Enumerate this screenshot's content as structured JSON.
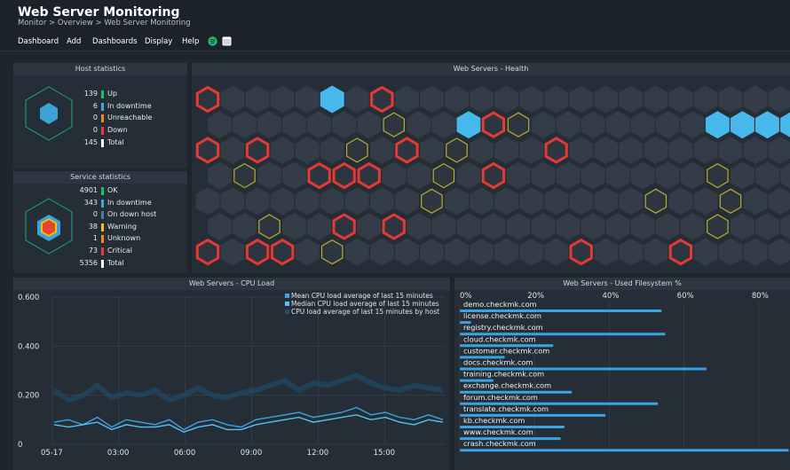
{
  "header": {
    "title": "Web Server Monitoring",
    "breadcrumb": "Monitor > Overview > Web Server Monitoring"
  },
  "menu": [
    "Dashboard",
    "Add",
    "Dashboards",
    "Display",
    "Help"
  ],
  "host_stats": {
    "title": "Host statistics",
    "rows": [
      {
        "value": "139",
        "label": "Up",
        "color": "#1fbc6c"
      },
      {
        "value": "6",
        "label": "In downtime",
        "color": "#3ba9df"
      },
      {
        "value": "0",
        "label": "Unreachable",
        "color": "#f08a1c"
      },
      {
        "value": "0",
        "label": "Down",
        "color": "#e53935"
      },
      {
        "value": "145",
        "label": "Total",
        "color": "#ffffff"
      }
    ]
  },
  "service_stats": {
    "title": "Service statistics",
    "rows": [
      {
        "value": "4901",
        "label": "OK",
        "color": "#1fbc6c"
      },
      {
        "value": "343",
        "label": "In downtime",
        "color": "#3ba9df"
      },
      {
        "value": "0",
        "label": "On down host",
        "color": "#4a7ea6"
      },
      {
        "value": "38",
        "label": "Warning",
        "color": "#f4c20d"
      },
      {
        "value": "1",
        "label": "Unknown",
        "color": "#f08a1c"
      },
      {
        "value": "73",
        "label": "Critical",
        "color": "#e53935"
      },
      {
        "value": "5356",
        "label": "Total",
        "color": "#ffffff"
      }
    ]
  },
  "health": {
    "title": "Web Servers - Health",
    "colors": {
      "ok": "#343d47",
      "crit": "#e53935",
      "warn": "#b5b02a",
      "down": "#47b8ec"
    },
    "rows": [
      "CNNNNDNCNNNNNNNNNNNNNNNNNNNNN",
      "NNNNNNNWNNDCWNNNNNNNDDDDNN",
      "CNCNNNWNCNWNNNCNNNNNNNNNNNN",
      "NWNNCCCNNWNCNNNNNNNNWNNNNNN",
      "NNNNNNNNNWNNNNNNNNWNNWNN",
      "NNWNNCNCNNNNNNNNNNNNWNNNNNN",
      "CNCCNWNNNNNNNNNCNNNCNNNNNNN"
    ]
  },
  "cpu_chart": {
    "title": "Web Servers - CPU Load",
    "chart_data": {
      "type": "line",
      "ylim": [
        0,
        0.6
      ],
      "yticks": [
        "0",
        "0.200",
        "0.400",
        "0.600"
      ],
      "xticks": [
        "05-17",
        "03:00",
        "06:00",
        "09:00",
        "12:00",
        "15:00"
      ],
      "series": [
        {
          "name": "Mean CPU load average of last 15 minutes",
          "color": "#3aa3e3",
          "values": [
            0.09,
            0.1,
            0.08,
            0.11,
            0.07,
            0.1,
            0.09,
            0.08,
            0.1,
            0.06,
            0.09,
            0.1,
            0.08,
            0.07,
            0.1,
            0.11,
            0.12,
            0.13,
            0.11,
            0.12,
            0.13,
            0.15,
            0.12,
            0.13,
            0.11,
            0.1,
            0.12,
            0.1
          ]
        },
        {
          "name": "Median CPU load average of last 15 minutes",
          "color": "#56c0f5",
          "values": [
            0.08,
            0.07,
            0.08,
            0.09,
            0.06,
            0.08,
            0.07,
            0.07,
            0.08,
            0.05,
            0.07,
            0.08,
            0.06,
            0.06,
            0.08,
            0.09,
            0.1,
            0.11,
            0.09,
            0.1,
            0.11,
            0.12,
            0.1,
            0.11,
            0.09,
            0.08,
            0.1,
            0.09
          ]
        },
        {
          "name": "CPU load average of last 15 minutes by host",
          "color": "#1f4f70",
          "values": [
            0.22,
            0.18,
            0.2,
            0.24,
            0.19,
            0.21,
            0.2,
            0.22,
            0.18,
            0.2,
            0.23,
            0.2,
            0.19,
            0.21,
            0.22,
            0.24,
            0.26,
            0.22,
            0.25,
            0.24,
            0.26,
            0.28,
            0.25,
            0.23,
            0.22,
            0.24,
            0.23,
            0.22
          ]
        }
      ]
    }
  },
  "fs_chart": {
    "title": "Web Servers - Used Filesystem %",
    "chart_data": {
      "type": "bar",
      "xticks": [
        "0%",
        "20%",
        "40%",
        "60%",
        "80%"
      ],
      "xlim": [
        0,
        90
      ],
      "categories": [
        "demo.checkmk.com",
        "license.checkmk.com",
        "registry.checkmk.com",
        "cloud.checkmk.com",
        "customer.checkmk.com",
        "docs.checkmk.com",
        "training.checkmk.com",
        "exchange.checkmk.com",
        "forum.checkmk.com",
        "translate.checkmk.com",
        "kb.checkmk.com",
        "www.checkmk.com",
        "crash.checkmk.com"
      ],
      "values": [
        54,
        3,
        55,
        25,
        12,
        66,
        9,
        30,
        53,
        39,
        28,
        27,
        88
      ]
    }
  }
}
